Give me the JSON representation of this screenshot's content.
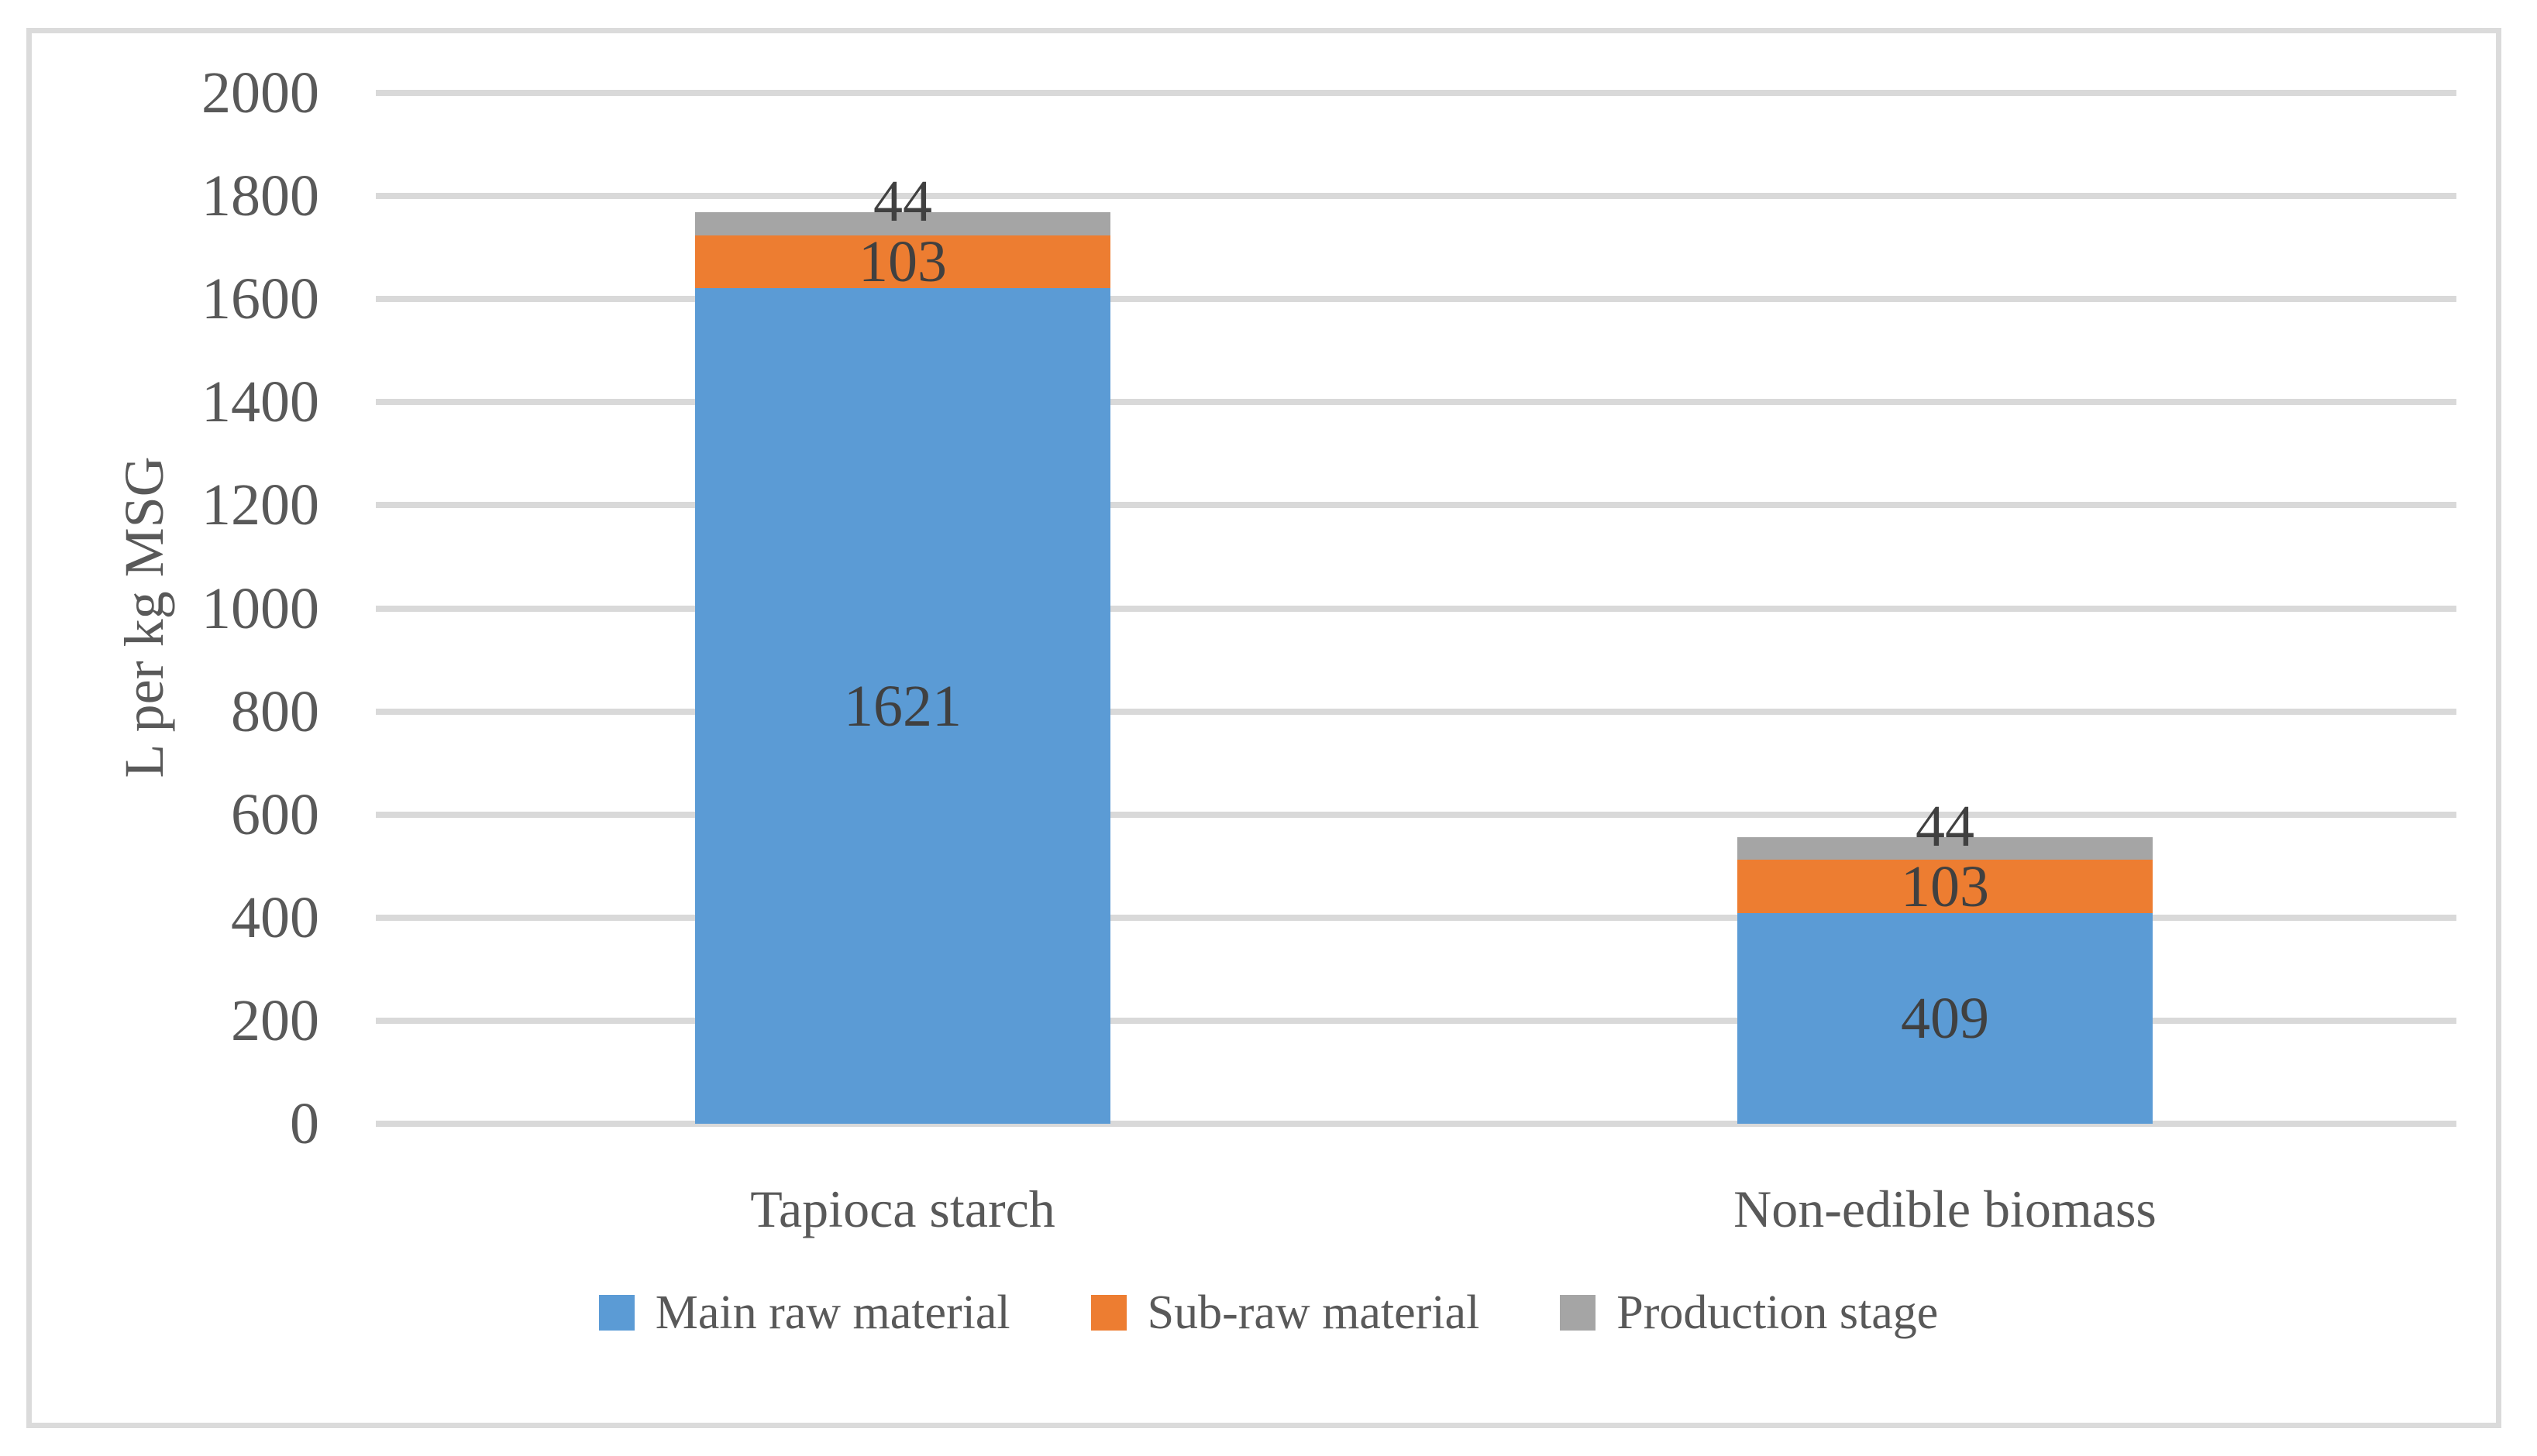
{
  "chart_data": {
    "type": "bar",
    "stacked": true,
    "categories": [
      "Tapioca starch",
      "Non-edible biomass"
    ],
    "series": [
      {
        "name": "Main raw material",
        "color": "#5B9BD5",
        "values": [
          1621,
          409
        ]
      },
      {
        "name": "Sub-raw material",
        "color": "#ED7D31",
        "values": [
          103,
          103
        ]
      },
      {
        "name": "Production stage",
        "color": "#A5A5A5",
        "values": [
          44,
          44
        ]
      }
    ],
    "title": "",
    "xlabel": "",
    "ylabel": "L per kg MSG",
    "ylim": [
      0,
      2000
    ],
    "y_ticks": [
      0,
      200,
      400,
      600,
      800,
      1000,
      1200,
      1400,
      1600,
      1800,
      2000
    ],
    "grid": true,
    "data_labels": true,
    "legend_position": "bottom"
  },
  "style": {
    "gridline_color": "#D9D9D9",
    "border_color": "#DBDBDB",
    "axis_text_color": "#595959",
    "data_label_color": "#404040",
    "background": "#FFFFFF"
  }
}
